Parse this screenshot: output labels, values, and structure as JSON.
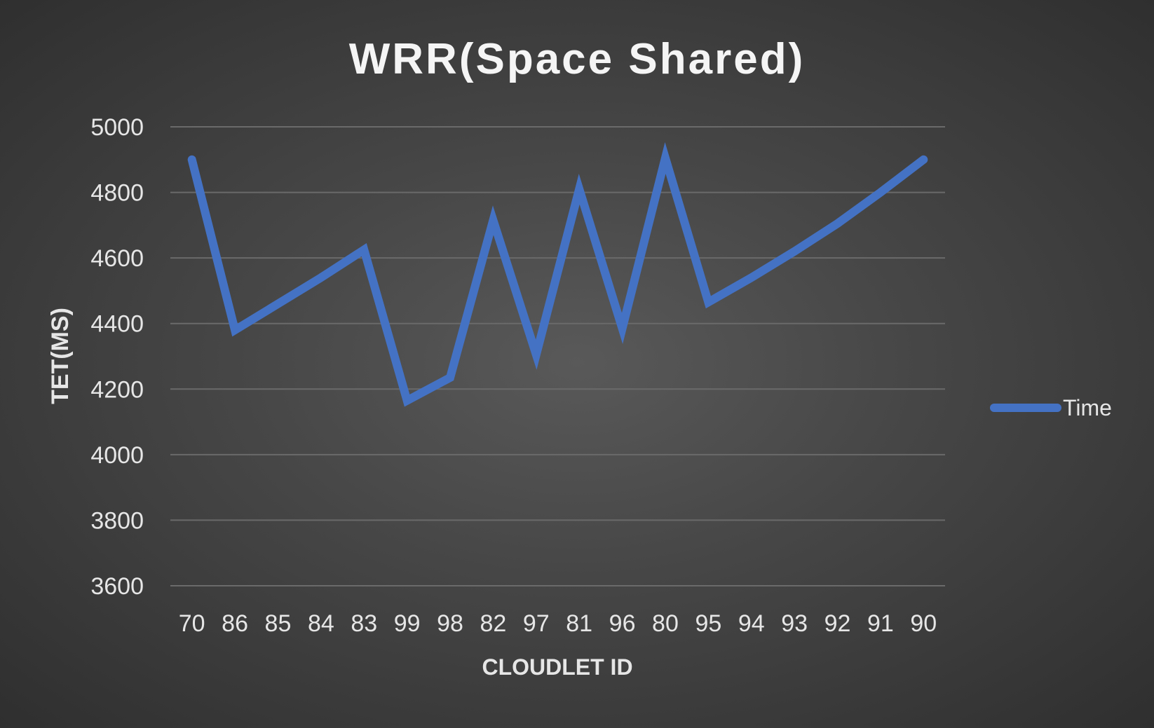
{
  "chart_data": {
    "type": "line",
    "title": "WRR(Space Shared)",
    "xlabel": "CLOUDLET ID",
    "ylabel": "TET(MS)",
    "categories": [
      "70",
      "86",
      "85",
      "84",
      "83",
      "99",
      "98",
      "82",
      "97",
      "81",
      "96",
      "80",
      "95",
      "94",
      "93",
      "92",
      "91",
      "90"
    ],
    "series": [
      {
        "name": "Time",
        "color": "#4472c4",
        "values": [
          4900,
          4380,
          4460,
          4540,
          4625,
          4165,
          4235,
          4715,
          4305,
          4810,
          4385,
          4905,
          4465,
          4540,
          4620,
          4705,
          4800,
          4900
        ]
      }
    ],
    "ylim": [
      3600,
      5000
    ],
    "yticks": [
      3600,
      3800,
      4000,
      4200,
      4400,
      4600,
      4800,
      5000
    ],
    "grid": true,
    "legend_position": "right"
  },
  "colors": {
    "gridline": "#6a6a6a",
    "text": "#e6e6e6",
    "title": "#f5f5f5",
    "series": "#4472c4"
  }
}
